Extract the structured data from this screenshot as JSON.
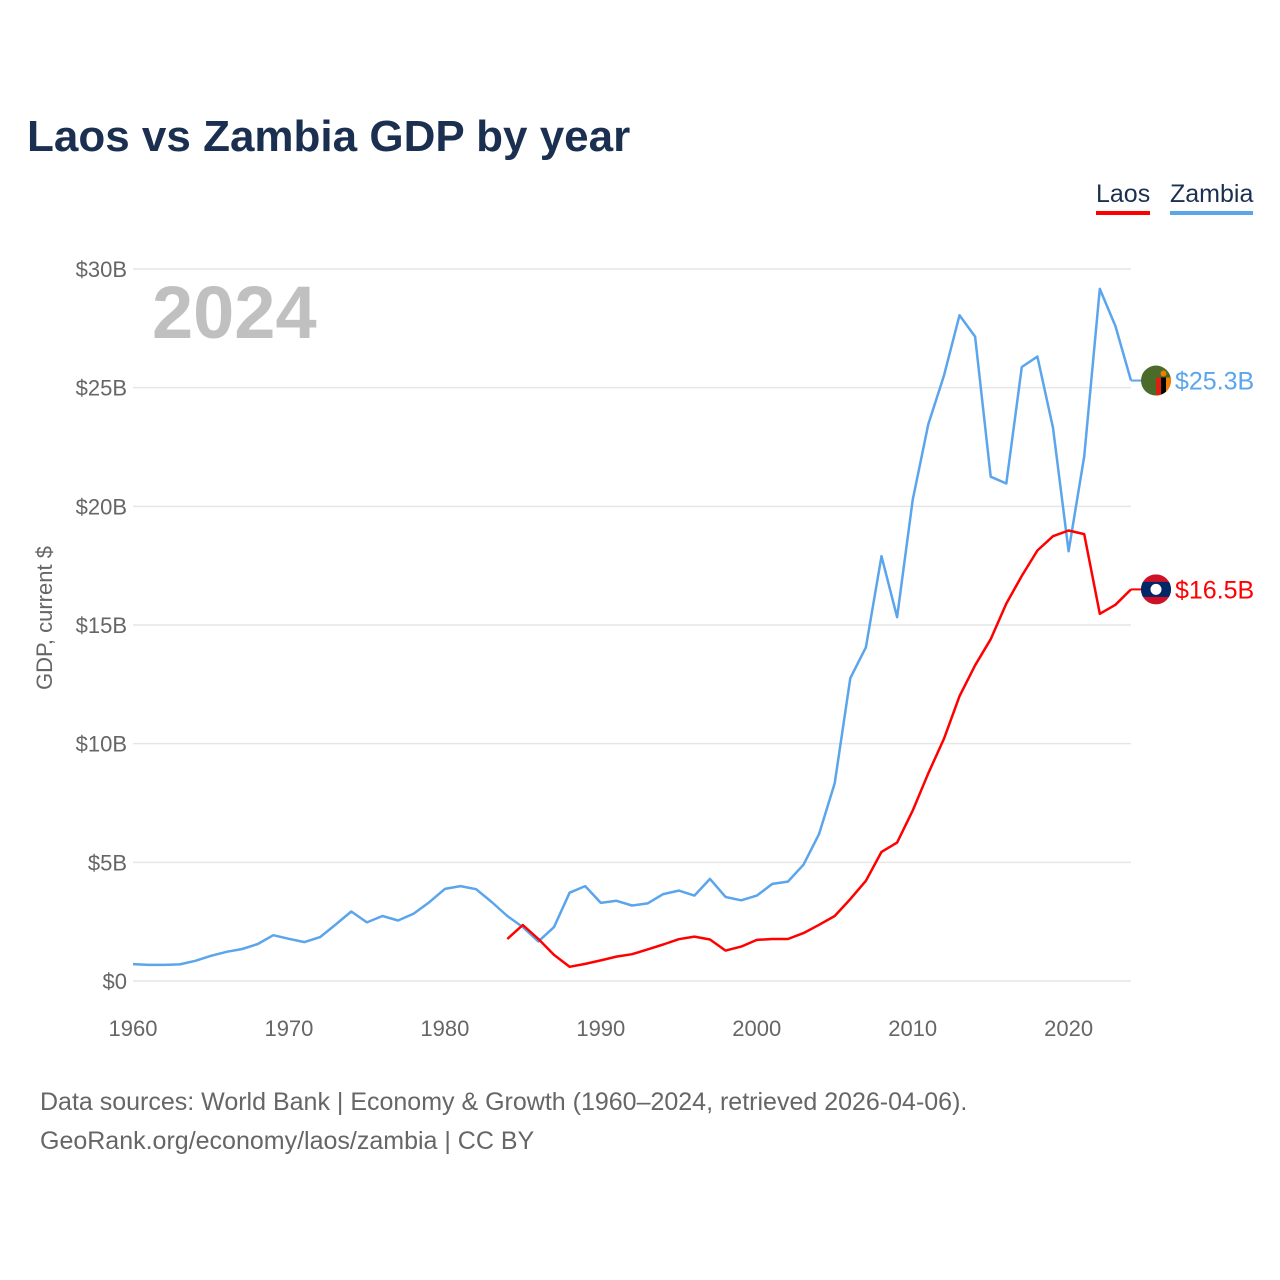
{
  "title": "Laos vs Zambia GDP by year",
  "legend": [
    {
      "label": "Laos",
      "color": "#ff0000"
    },
    {
      "label": "Zambia",
      "color": "#5aa5ec"
    }
  ],
  "year_label": "2024",
  "footer": {
    "line1": "Data sources: World Bank | Economy & Growth (1960–2024, retrieved 2026-04-06).",
    "line2": "GeoRank.org/economy/laos/zambia | CC BY"
  },
  "chart_data": {
    "type": "line",
    "title": "Laos vs Zambia GDP by year",
    "xlabel": "",
    "ylabel": "GDP, current $",
    "xlim": [
      1960,
      2024
    ],
    "ylim": [
      0,
      30
    ],
    "x_ticks": [
      1960,
      1970,
      1980,
      1990,
      2000,
      2010,
      2020
    ],
    "x_tick_labels": [
      "1960",
      "1970",
      "1980",
      "1990",
      "2000",
      "2010",
      "2020"
    ],
    "y_ticks": [
      0,
      5,
      10,
      15,
      20,
      25,
      30
    ],
    "y_tick_labels": [
      "$0",
      "$5B",
      "$10B",
      "$15B",
      "$20B",
      "$25B",
      "$30B"
    ],
    "grid": true,
    "legend_position": "top-right",
    "units": "billions USD",
    "series": [
      {
        "name": "Zambia",
        "color": "#5aa5ec",
        "end_label": "$25.3B",
        "start_year": 1960,
        "values": [
          0.71,
          0.68,
          0.68,
          0.7,
          0.85,
          1.06,
          1.23,
          1.35,
          1.56,
          1.93,
          1.78,
          1.64,
          1.85,
          2.38,
          2.93,
          2.47,
          2.74,
          2.55,
          2.84,
          3.32,
          3.88,
          4.0,
          3.87,
          3.33,
          2.74,
          2.27,
          1.67,
          2.27,
          3.72,
          4.0,
          3.29,
          3.38,
          3.18,
          3.27,
          3.66,
          3.81,
          3.6,
          4.3,
          3.54,
          3.4,
          3.6,
          4.09,
          4.19,
          4.9,
          6.2,
          8.33,
          12.76,
          14.06,
          17.9,
          15.33,
          20.27,
          23.46,
          25.5,
          28.05,
          27.15,
          21.25,
          20.96,
          25.87,
          26.31,
          23.31,
          18.11,
          22.1,
          29.16,
          27.6,
          25.3
        ]
      },
      {
        "name": "Laos",
        "color": "#ff0000",
        "end_label": "$16.5B",
        "start_year": 1984,
        "values": [
          1.77,
          2.36,
          1.77,
          1.1,
          0.6,
          0.72,
          0.87,
          1.03,
          1.13,
          1.33,
          1.54,
          1.76,
          1.87,
          1.75,
          1.28,
          1.45,
          1.73,
          1.77,
          1.77,
          2.02,
          2.37,
          2.74,
          3.45,
          4.22,
          5.44,
          5.83,
          7.18,
          8.75,
          10.2,
          12.0,
          13.3,
          14.4,
          15.9,
          17.07,
          18.14,
          18.74,
          18.98,
          18.83,
          15.47,
          15.85,
          16.5
        ]
      }
    ]
  }
}
